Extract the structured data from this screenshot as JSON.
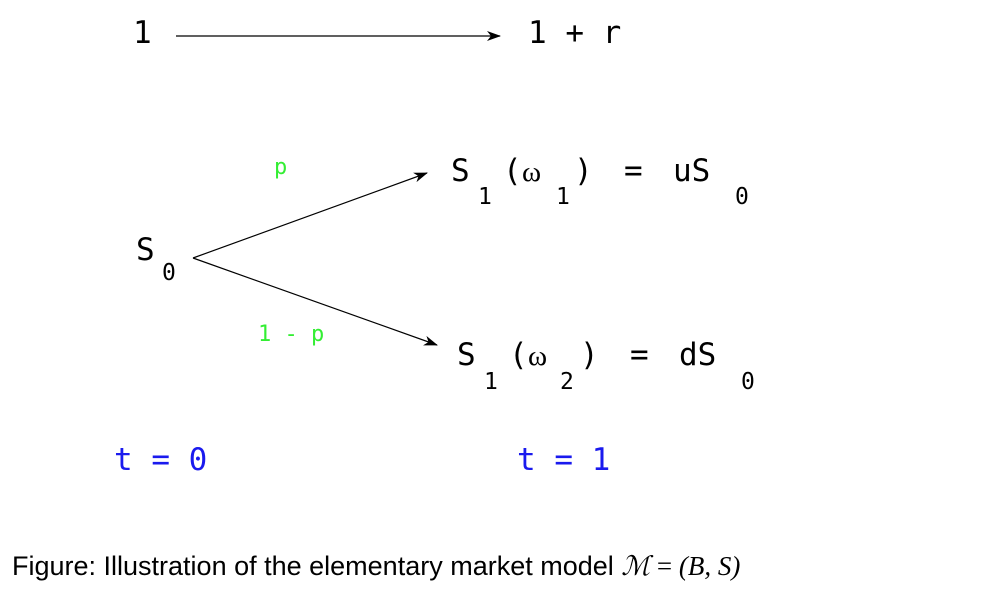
{
  "bond": {
    "start": "1",
    "end": "1 + r"
  },
  "stock": {
    "start_symbol": "S",
    "start_sub": "0",
    "up": {
      "prob": "p",
      "symbol": "S",
      "sub": "1",
      "omega": "ω",
      "omega_sub": "1",
      "open_paren": "(",
      "close_paren": ")",
      "equals": "=",
      "rhs": "uS",
      "rhs_sub": "0"
    },
    "down": {
      "prob": "1 - p",
      "symbol": "S",
      "sub": "1",
      "omega": "ω",
      "omega_sub": "2",
      "open_paren": "(",
      "close_paren": ")",
      "equals": "=",
      "rhs": "dS",
      "rhs_sub": "0"
    }
  },
  "time_labels": {
    "t0": "t = 0",
    "t1": "t = 1"
  },
  "caption": {
    "prefix": "Figure: Illustration of the elementary market model ",
    "model_symbol": "ℳ",
    "equals": " = ",
    "args": "(B, S)"
  },
  "colors": {
    "probability": "#33ee33",
    "time": "#1a1aee",
    "text": "#000000"
  }
}
